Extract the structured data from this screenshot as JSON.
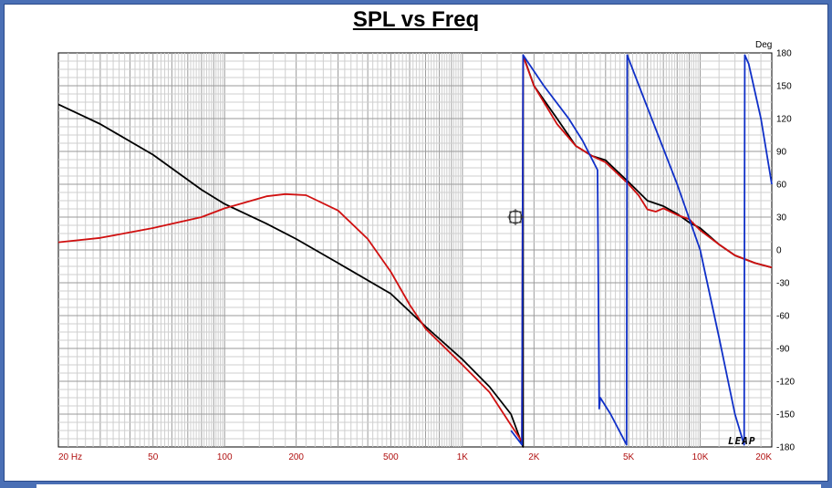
{
  "chart_data": {
    "type": "line",
    "title": "SPL vs Freq",
    "y_unit": "Deg",
    "x_scale": "log",
    "xlim": [
      20,
      20000
    ],
    "ylim": [
      -180,
      180
    ],
    "grid": true,
    "x_tick_labels": [
      {
        "value": 20,
        "label": "20  Hz"
      },
      {
        "value": 50,
        "label": "50"
      },
      {
        "value": 100,
        "label": "100"
      },
      {
        "value": 200,
        "label": "200"
      },
      {
        "value": 500,
        "label": "500"
      },
      {
        "value": 1000,
        "label": "1K"
      },
      {
        "value": 2000,
        "label": "2K"
      },
      {
        "value": 5000,
        "label": "5K"
      },
      {
        "value": 10000,
        "label": "10K"
      },
      {
        "value": 20000,
        "label": "20K"
      }
    ],
    "y_ticks": [
      180,
      150,
      120,
      90,
      60,
      30,
      0,
      -30,
      -60,
      -90,
      -120,
      -150,
      -180
    ],
    "watermark": "LEAP",
    "series": [
      {
        "color": "#000000",
        "points": [
          [
            20,
            133
          ],
          [
            30,
            115
          ],
          [
            50,
            87
          ],
          [
            80,
            55
          ],
          [
            100,
            42
          ],
          [
            150,
            24
          ],
          [
            200,
            10
          ],
          [
            300,
            -12
          ],
          [
            500,
            -40
          ],
          [
            700,
            -70
          ],
          [
            1000,
            -100
          ],
          [
            1300,
            -125
          ],
          [
            1600,
            -150
          ],
          [
            1800,
            -180
          ],
          [
            1800,
            178
          ],
          [
            2000,
            150
          ],
          [
            2500,
            120
          ],
          [
            3000,
            95
          ],
          [
            3500,
            86
          ],
          [
            4000,
            82
          ],
          [
            5000,
            62
          ],
          [
            6000,
            45
          ],
          [
            7000,
            40
          ],
          [
            8000,
            33
          ],
          [
            9000,
            25
          ],
          [
            10000,
            20
          ],
          [
            12000,
            5
          ],
          [
            14000,
            -5
          ],
          [
            17000,
            -12
          ],
          [
            20000,
            -16
          ]
        ]
      },
      {
        "color": "#d01010",
        "points": [
          [
            20,
            7
          ],
          [
            30,
            11
          ],
          [
            50,
            20
          ],
          [
            80,
            30
          ],
          [
            100,
            38
          ],
          [
            150,
            49
          ],
          [
            180,
            51
          ],
          [
            220,
            50
          ],
          [
            300,
            36
          ],
          [
            400,
            10
          ],
          [
            500,
            -20
          ],
          [
            600,
            -50
          ],
          [
            700,
            -72
          ],
          [
            1000,
            -105
          ],
          [
            1300,
            -130
          ],
          [
            1600,
            -160
          ],
          [
            1780,
            -175
          ],
          [
            1800,
            177
          ],
          [
            2000,
            150
          ],
          [
            2500,
            115
          ],
          [
            3000,
            95
          ],
          [
            3500,
            86
          ],
          [
            4000,
            80
          ],
          [
            5000,
            60
          ],
          [
            5500,
            50
          ],
          [
            6000,
            37
          ],
          [
            6500,
            35
          ],
          [
            7000,
            38
          ],
          [
            8000,
            32
          ],
          [
            9000,
            28
          ],
          [
            10000,
            18
          ],
          [
            12000,
            5
          ],
          [
            14000,
            -5
          ],
          [
            17000,
            -12
          ],
          [
            20000,
            -16
          ]
        ]
      },
      {
        "color": "#1030c8",
        "points": [
          [
            1600,
            -165
          ],
          [
            1780,
            -178
          ],
          [
            1800,
            178
          ],
          [
            2200,
            150
          ],
          [
            2800,
            120
          ],
          [
            3200,
            100
          ],
          [
            3700,
            73
          ],
          [
            3760,
            -145
          ],
          [
            3800,
            -135
          ],
          [
            4200,
            -150
          ],
          [
            4900,
            -178
          ],
          [
            4930,
            178
          ],
          [
            6000,
            130
          ],
          [
            8000,
            60
          ],
          [
            10000,
            0
          ],
          [
            12000,
            -80
          ],
          [
            14000,
            -150
          ],
          [
            15300,
            -178
          ],
          [
            15400,
            178
          ],
          [
            16000,
            170
          ],
          [
            18000,
            120
          ],
          [
            20000,
            60
          ]
        ]
      }
    ]
  }
}
